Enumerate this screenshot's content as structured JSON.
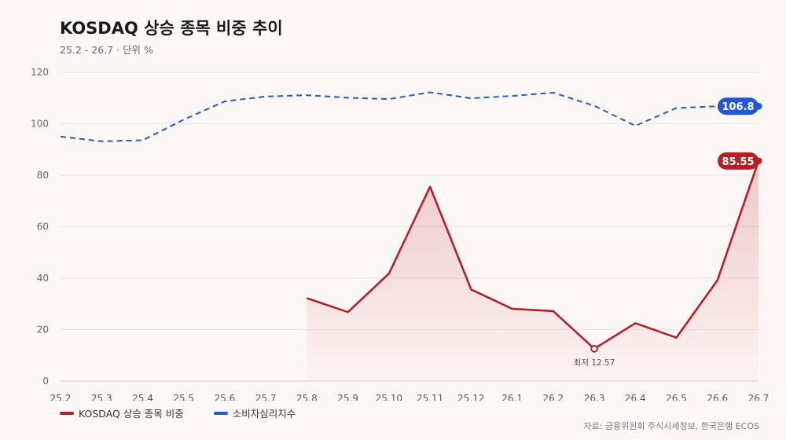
{
  "header": {
    "title": "KOSDAQ 상승 종목 비중 추이",
    "subtitle": "25.2 - 26.7 · 단위 %"
  },
  "source": "자료: 금융위원회 주식시세정보, 한국은행 ECOS",
  "colors": {
    "kosdaq": "#b42025",
    "csi": "#2457d6"
  },
  "chart_data": {
    "type": "line",
    "categories": [
      "25.2",
      "25.3",
      "25.4",
      "25.5",
      "25.6",
      "25.7",
      "25.8",
      "25.9",
      "25.10",
      "25.11",
      "25.12",
      "26.1",
      "26.2",
      "26.3",
      "26.4",
      "26.5",
      "26.6",
      "26.7"
    ],
    "ylim": [
      0,
      120
    ],
    "yticks": [
      0,
      20,
      40,
      60,
      80,
      100,
      120
    ],
    "grid": true,
    "legend_position": "bottom-left",
    "series": [
      {
        "name": "KOSDAQ 상승 종목 비중",
        "key": "kosdaq",
        "style": "solid-area",
        "values": [
          null,
          null,
          null,
          null,
          null,
          null,
          32.2,
          26.8,
          41.8,
          75.5,
          35.6,
          28.1,
          27.2,
          12.57,
          22.5,
          16.9,
          39.2,
          85.55
        ],
        "end_label": "85.55"
      },
      {
        "name": "소비자심리지수",
        "key": "csi",
        "style": "dashed",
        "values": [
          95.0,
          93.2,
          93.6,
          101.6,
          108.7,
          110.6,
          111.1,
          110.1,
          109.6,
          112.2,
          109.9,
          110.8,
          112.1,
          107.0,
          99.2,
          106.1,
          106.8,
          106.8
        ],
        "end_label": "106.8"
      }
    ],
    "annotations": [
      {
        "series": "kosdaq",
        "category": "26.3",
        "text": "최저 12.57"
      }
    ]
  }
}
